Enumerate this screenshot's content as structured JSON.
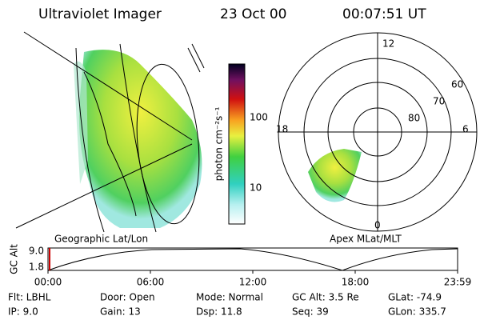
{
  "header": {
    "title": "Ultraviolet Imager",
    "date": "23 Oct 00",
    "time": "00:07:51 UT"
  },
  "colorbar": {
    "label": "photon cm⁻²s⁻¹",
    "ticks": [
      "100",
      "10"
    ]
  },
  "polar": {
    "labels": {
      "top": "12",
      "left": "18",
      "right": "6",
      "bottom": "0"
    },
    "rings": [
      "60",
      "70",
      "80"
    ]
  },
  "captions": {
    "left": "Geographic Lat/Lon",
    "right": "Apex MLat/MLT"
  },
  "timeline": {
    "axis_label": "GC Alt",
    "y_labels": [
      "9.0",
      "1.8"
    ],
    "x_labels": [
      "00:00",
      "06:00",
      "12:00",
      "18:00",
      "23:59"
    ]
  },
  "info": [
    [
      "Flt: LBHL",
      "IP: 9.0"
    ],
    [
      "Door: Open",
      "Gain: 13"
    ],
    [
      "Mode: Normal",
      "Dsp: 11.8"
    ],
    [
      "GC Alt: 3.5 Re",
      "Seq: 39"
    ],
    [
      "GLat: -74.9",
      "GLon: 335.7"
    ]
  ]
}
